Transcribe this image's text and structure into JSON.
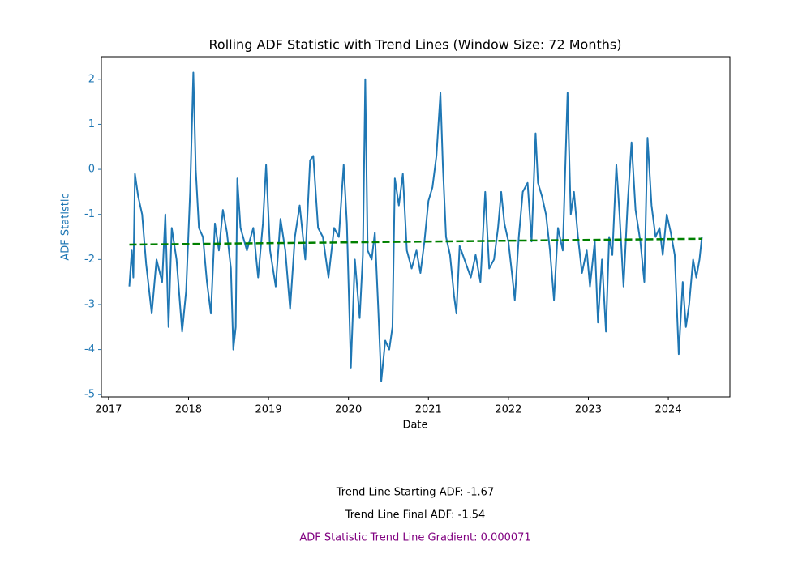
{
  "chart_data": {
    "type": "line",
    "title": "Rolling ADF Statistic with Trend Lines (Window Size: 72 Months)",
    "x_label": "Date",
    "y_label": "ADF Statistic",
    "y_axis_color": "#1f77b4",
    "xlim": [
      2016.91,
      2024.77
    ],
    "xticks": [
      2017,
      2018,
      2019,
      2020,
      2021,
      2022,
      2023,
      2024
    ],
    "ylim": [
      -5.05,
      2.5
    ],
    "yticks": [
      -5,
      -4,
      -3,
      -2,
      -1,
      0,
      1,
      2
    ],
    "series": [
      {
        "name": "ADF Statistic",
        "color": "#1f77b4",
        "dashed": false,
        "x": [
          2017.26,
          2017.29,
          2017.31,
          2017.33,
          2017.37,
          2017.42,
          2017.47,
          2017.54,
          2017.6,
          2017.67,
          2017.71,
          2017.75,
          2017.79,
          2017.85,
          2017.92,
          2017.97,
          2018.02,
          2018.06,
          2018.09,
          2018.13,
          2018.18,
          2018.23,
          2018.28,
          2018.33,
          2018.38,
          2018.43,
          2018.48,
          2018.53,
          2018.56,
          2018.59,
          2018.61,
          2018.65,
          2018.73,
          2018.81,
          2018.87,
          2018.93,
          2018.97,
          2019.02,
          2019.09,
          2019.15,
          2019.21,
          2019.27,
          2019.33,
          2019.39,
          2019.46,
          2019.52,
          2019.56,
          2019.62,
          2019.68,
          2019.75,
          2019.82,
          2019.88,
          2019.94,
          2019.98,
          2020.03,
          2020.08,
          2020.14,
          2020.18,
          2020.21,
          2020.24,
          2020.29,
          2020.33,
          2020.37,
          2020.41,
          2020.46,
          2020.51,
          2020.55,
          2020.58,
          2020.63,
          2020.68,
          2020.73,
          2020.79,
          2020.85,
          2020.9,
          2020.95,
          2021.0,
          2021.05,
          2021.1,
          2021.15,
          2021.18,
          2021.22,
          2021.27,
          2021.32,
          2021.35,
          2021.39,
          2021.45,
          2021.53,
          2021.59,
          2021.65,
          2021.71,
          2021.76,
          2021.82,
          2021.87,
          2021.91,
          2021.95,
          2022.0,
          2022.05,
          2022.08,
          2022.13,
          2022.18,
          2022.24,
          2022.29,
          2022.34,
          2022.37,
          2022.42,
          2022.47,
          2022.52,
          2022.57,
          2022.62,
          2022.68,
          2022.74,
          2022.78,
          2022.82,
          2022.87,
          2022.92,
          2022.98,
          2023.02,
          2023.08,
          2023.12,
          2023.17,
          2023.22,
          2023.26,
          2023.3,
          2023.35,
          2023.39,
          2023.44,
          2023.49,
          2023.54,
          2023.59,
          2023.65,
          2023.7,
          2023.74,
          2023.79,
          2023.84,
          2023.89,
          2023.93,
          2023.98,
          2024.03,
          2024.08,
          2024.13,
          2024.18,
          2024.22,
          2024.26,
          2024.31,
          2024.35,
          2024.39,
          2024.42
        ],
        "values": [
          -2.6,
          -1.8,
          -2.4,
          -0.1,
          -0.6,
          -1.0,
          -2.1,
          -3.2,
          -2.0,
          -2.5,
          -1.0,
          -3.5,
          -1.3,
          -2.0,
          -3.6,
          -2.7,
          -0.5,
          2.15,
          0.0,
          -1.3,
          -1.5,
          -2.5,
          -3.2,
          -1.2,
          -1.8,
          -0.9,
          -1.4,
          -2.2,
          -4.0,
          -3.5,
          -0.2,
          -1.3,
          -1.8,
          -1.3,
          -2.4,
          -1.2,
          0.1,
          -1.8,
          -2.6,
          -1.1,
          -1.8,
          -3.1,
          -1.5,
          -0.8,
          -2.0,
          0.2,
          0.3,
          -1.3,
          -1.5,
          -2.4,
          -1.3,
          -1.5,
          0.1,
          -1.2,
          -4.4,
          -2.0,
          -3.3,
          -1.9,
          2.0,
          -1.8,
          -2.0,
          -1.4,
          -3.0,
          -4.7,
          -3.8,
          -4.0,
          -3.5,
          -0.2,
          -0.8,
          -0.1,
          -1.8,
          -2.2,
          -1.8,
          -2.3,
          -1.6,
          -0.7,
          -0.4,
          0.3,
          1.7,
          0.1,
          -1.5,
          -1.9,
          -2.8,
          -3.2,
          -1.7,
          -2.0,
          -2.4,
          -1.9,
          -2.5,
          -0.5,
          -2.2,
          -2.0,
          -1.3,
          -0.5,
          -1.2,
          -1.6,
          -2.4,
          -2.9,
          -1.5,
          -0.5,
          -0.3,
          -1.6,
          0.8,
          -0.3,
          -0.6,
          -1.0,
          -1.8,
          -2.9,
          -1.3,
          -1.8,
          1.7,
          -1.0,
          -0.5,
          -1.5,
          -2.3,
          -1.8,
          -2.6,
          -1.6,
          -3.4,
          -2.0,
          -3.6,
          -1.5,
          -1.9,
          0.1,
          -1.0,
          -2.6,
          -0.8,
          0.6,
          -0.9,
          -1.6,
          -2.5,
          0.7,
          -0.8,
          -1.5,
          -1.3,
          -1.9,
          -1.0,
          -1.4,
          -1.9,
          -4.1,
          -2.5,
          -3.5,
          -3.0,
          -2.0,
          -2.4,
          -2.0,
          -1.5
        ]
      },
      {
        "name": "Trend Line",
        "color": "#008000",
        "dashed": true,
        "x": [
          2017.26,
          2024.42
        ],
        "values": [
          -1.67,
          -1.54
        ]
      }
    ],
    "annotations": [
      {
        "text": "Trend Line Starting ADF: -1.67",
        "color": "#000000"
      },
      {
        "text": "Trend Line Final ADF: -1.54",
        "color": "#000000"
      },
      {
        "text": "ADF Statistic Trend Line Gradient: 0.000071",
        "color": "#800080"
      }
    ]
  }
}
